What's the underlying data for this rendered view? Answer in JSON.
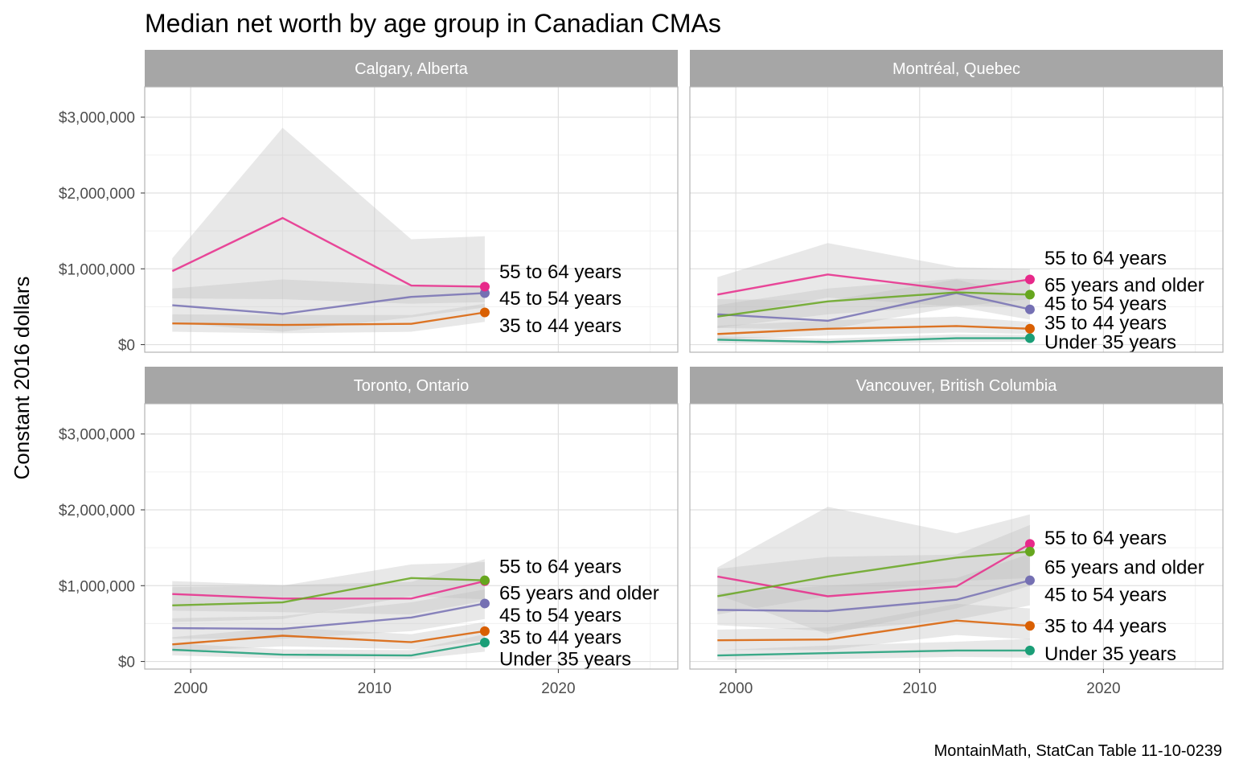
{
  "chart_data": {
    "type": "line",
    "title": "Median net worth by age group in Canadian CMAs",
    "ylabel": "Constant 2016 dollars",
    "xlabel": "",
    "caption": "MontainMath, StatCan Table 11-10-0239",
    "x": [
      1999,
      2005,
      2012,
      2016
    ],
    "xlim": [
      1997.5,
      2026.5
    ],
    "ylim": [
      -100000,
      3400000
    ],
    "x_ticks": [
      2000,
      2010,
      2020
    ],
    "x_tick_labels": [
      "2000",
      "2010",
      "2020"
    ],
    "y_ticks": [
      0,
      1000000,
      2000000,
      3000000
    ],
    "y_tick_labels": [
      "$0",
      "$1,000,000",
      "$2,000,000",
      "$3,000,000"
    ],
    "grid": true,
    "legend": "none",
    "colors": {
      "Under 35 years": "#1b9e77",
      "35 to 44 years": "#d95f02",
      "45 to 54 years": "#7570b3",
      "55 to 64 years": "#e7298a",
      "65 years and older": "#66a61e",
      "ribbon": "#bdbdbd",
      "strip": "#a6a6a6"
    },
    "panels": [
      {
        "name": "Calgary, Alberta",
        "series": [
          {
            "name": "35 to 44 years",
            "values": [
              280000,
              260000,
              275000,
              425000
            ],
            "lower": [
              170000,
              150000,
              170000,
              300000
            ],
            "upper": [
              400000,
              390000,
              390000,
              540000
            ]
          },
          {
            "name": "45 to 54 years",
            "values": [
              520000,
              405000,
              630000,
              680000
            ],
            "lower": [
              290000,
              170000,
              360000,
              490000
            ],
            "upper": [
              740000,
              860000,
              780000,
              760000
            ]
          },
          {
            "name": "55 to 64 years",
            "values": [
              970000,
              1670000,
              780000,
              765000
            ],
            "lower": [
              610000,
              600000,
              540000,
              560000
            ],
            "upper": [
              1140000,
              2860000,
              1390000,
              1430000
            ]
          }
        ],
        "end_labels": [
          {
            "text": "55 to 64 years",
            "value": 960000
          },
          {
            "text": "45 to 54 years",
            "value": 610000
          },
          {
            "text": "35 to 44 years",
            "value": 250000
          }
        ]
      },
      {
        "name": "Montréal, Quebec",
        "series": [
          {
            "name": "Under 35 years",
            "values": [
              65000,
              35000,
              85000,
              85000
            ],
            "lower": [
              20000,
              5000,
              35000,
              40000
            ],
            "upper": [
              110000,
              80000,
              135000,
              130000
            ]
          },
          {
            "name": "35 to 44 years",
            "values": [
              140000,
              210000,
              245000,
              210000
            ],
            "lower": [
              70000,
              120000,
              160000,
              140000
            ],
            "upper": [
              250000,
              320000,
              370000,
              300000
            ]
          },
          {
            "name": "45 to 54 years",
            "values": [
              400000,
              315000,
              680000,
              465000
            ],
            "lower": [
              220000,
              200000,
              500000,
              330000
            ],
            "upper": [
              600000,
              580000,
              860000,
              620000
            ]
          },
          {
            "name": "55 to 64 years",
            "values": [
              660000,
              925000,
              720000,
              860000
            ],
            "lower": [
              360000,
              620000,
              500000,
              600000
            ],
            "upper": [
              890000,
              1340000,
              1020000,
              1000000
            ]
          },
          {
            "name": "65 years and older",
            "values": [
              370000,
              570000,
              690000,
              660000
            ],
            "lower": [
              220000,
              400000,
              520000,
              490000
            ],
            "upper": [
              520000,
              740000,
              870000,
              840000
            ]
          }
        ],
        "end_labels": [
          {
            "text": "55 to 64 years",
            "value": 1140000
          },
          {
            "text": "65 years and older",
            "value": 785000
          },
          {
            "text": "45 to 54 years",
            "value": 540000
          },
          {
            "text": "35 to 44 years",
            "value": 285000
          },
          {
            "text": "Under 35 years",
            "value": 35000
          }
        ]
      },
      {
        "name": "Toronto, Ontario",
        "series": [
          {
            "name": "Under 35 years",
            "values": [
              155000,
              90000,
              80000,
              250000
            ],
            "lower": [
              80000,
              40000,
              30000,
              130000
            ],
            "upper": [
              240000,
              160000,
              150000,
              360000
            ]
          },
          {
            "name": "35 to 44 years",
            "values": [
              225000,
              340000,
              255000,
              400000
            ],
            "lower": [
              130000,
              200000,
              160000,
              280000
            ],
            "upper": [
              320000,
              450000,
              360000,
              520000
            ]
          },
          {
            "name": "45 to 54 years",
            "values": [
              440000,
              430000,
              580000,
              765000
            ],
            "lower": [
              300000,
              300000,
              400000,
              560000
            ],
            "upper": [
              570000,
              600000,
              780000,
              950000
            ]
          },
          {
            "name": "55 to 64 years",
            "values": [
              890000,
              830000,
              830000,
              1060000
            ],
            "lower": [
              670000,
              650000,
              620000,
              800000
            ],
            "upper": [
              1060000,
              1010000,
              1050000,
              1350000
            ]
          },
          {
            "name": "65 years and older",
            "values": [
              740000,
              780000,
              1100000,
              1070000
            ],
            "lower": [
              520000,
              560000,
              860000,
              820000
            ],
            "upper": [
              980000,
              1000000,
              1280000,
              1310000
            ]
          }
        ],
        "end_labels": [
          {
            "text": "55 to 64 years",
            "value": 1250000
          },
          {
            "text": "65 years and older",
            "value": 900000
          },
          {
            "text": "45 to 54 years",
            "value": 610000
          },
          {
            "text": "35 to 44 years",
            "value": 320000
          },
          {
            "text": "Under 35 years",
            "value": 30000
          }
        ]
      },
      {
        "name": "Vancouver, British Columbia",
        "series": [
          {
            "name": "Under 35 years",
            "values": [
              80000,
              110000,
              145000,
              145000
            ],
            "lower": [
              20000,
              30000,
              60000,
              50000
            ],
            "upper": [
              150000,
              210000,
              260000,
              300000
            ]
          },
          {
            "name": "35 to 44 years",
            "values": [
              280000,
              290000,
              540000,
              470000
            ],
            "lower": [
              150000,
              150000,
              350000,
              290000
            ],
            "upper": [
              420000,
              450000,
              760000,
              700000
            ]
          },
          {
            "name": "45 to 54 years",
            "values": [
              680000,
              665000,
              815000,
              1070000
            ],
            "lower": [
              480000,
              400000,
              550000,
              740000
            ],
            "upper": [
              900000,
              1000000,
              1100000,
              1420000
            ]
          },
          {
            "name": "55 to 64 years",
            "values": [
              1120000,
              860000,
              990000,
              1550000
            ],
            "lower": [
              880000,
              360000,
              700000,
              1000000
            ],
            "upper": [
              1240000,
              2040000,
              1690000,
              1940000
            ]
          },
          {
            "name": "65 years and older",
            "values": [
              860000,
              1120000,
              1370000,
              1450000
            ],
            "lower": [
              620000,
              860000,
              1060000,
              1100000
            ],
            "upper": [
              1220000,
              1380000,
              1410000,
              1800000
            ]
          }
        ],
        "end_labels": [
          {
            "text": "55 to 64 years",
            "value": 1630000
          },
          {
            "text": "65 years and older",
            "value": 1240000
          },
          {
            "text": "45 to 54 years",
            "value": 880000
          },
          {
            "text": "35 to 44 years",
            "value": 470000
          },
          {
            "text": "Under 35 years",
            "value": 100000
          }
        ]
      }
    ]
  }
}
